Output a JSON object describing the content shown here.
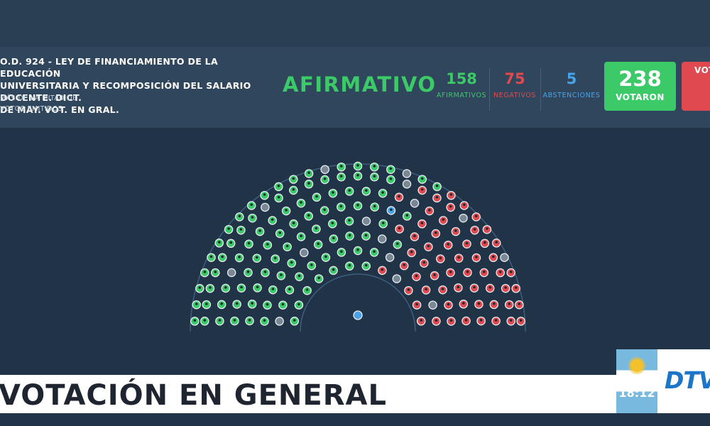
{
  "header": {
    "bill_title": "O.D. 924 - LEY DE FINANCIAMIENTO DE LA EDUCACIÓN\nUNIVERSITARIA Y RECOMPOSICIÓN DEL SALARIO DOCENTE. DICT.\nDE MAY. VOT. EN GRAL.",
    "bill_subtitle": "MÁS DE LA MITAD DE\nVOTOS EMITIDOS",
    "result": "AFIRMATIVO",
    "afirmativos": {
      "value": "158",
      "label": "AFIRMATIVOS",
      "color": "#3cc968"
    },
    "negativos": {
      "value": "75",
      "label": "NEGATIVOS",
      "color": "#e0494f"
    },
    "abstenciones": {
      "value": "5",
      "label": "ABSTENCIONES",
      "color": "#4aa3e8"
    },
    "votaron": {
      "value": "238",
      "label": "VOTARON",
      "color": "#3cc968"
    },
    "no_votaron": {
      "value": "",
      "label": "VOT",
      "color": "#e0494f"
    }
  },
  "chamber": {
    "colors": {
      "yes": "#3cc968",
      "no": "#e0494f",
      "abstain": "#4aa3e8",
      "absent": "#7a8794",
      "president": "#4aa3e8"
    }
  },
  "banner": {
    "text": "VOTACIÓN EN GENERAL"
  },
  "clock": {
    "time": "18:12"
  },
  "logo": {
    "text": "DTV"
  }
}
